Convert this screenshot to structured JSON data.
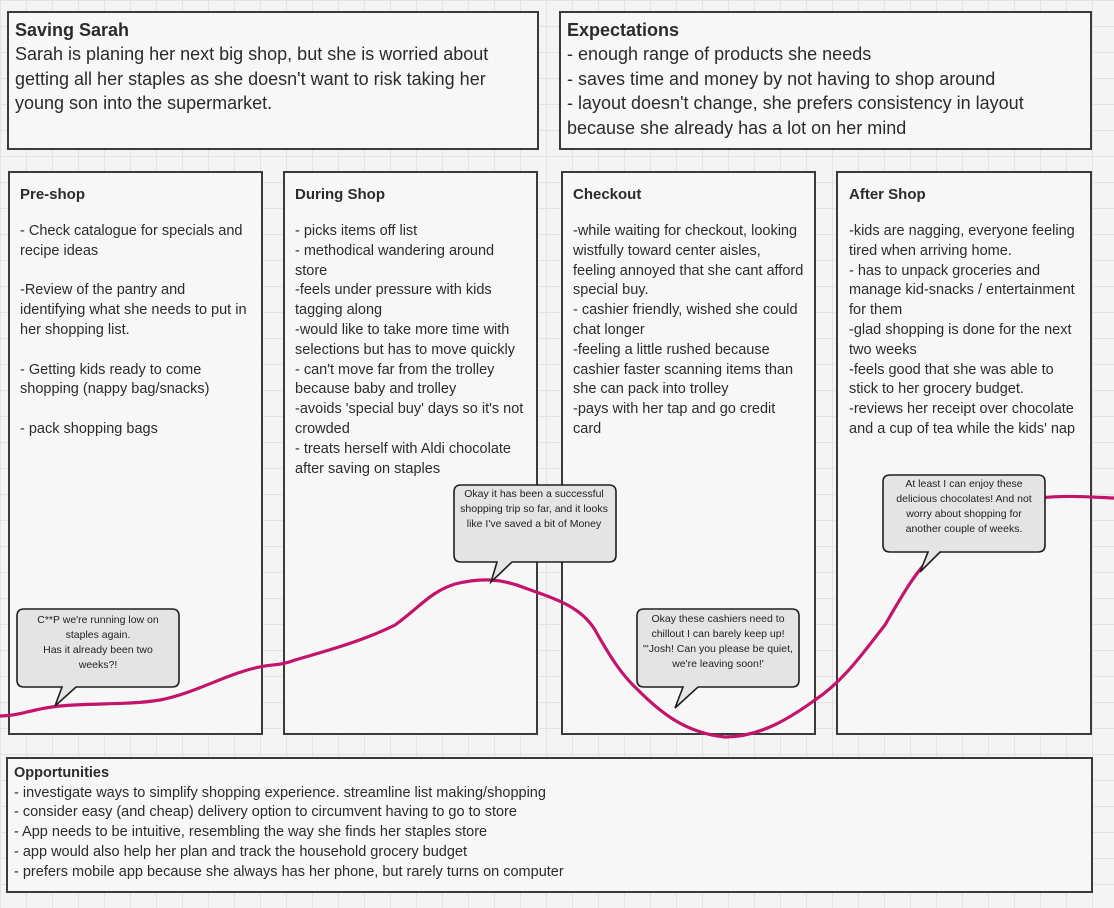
{
  "persona": {
    "title": "Saving Sarah",
    "text": "Sarah is planing her next big shop, but she is worried about getting all her staples as she doesn't want to risk taking her young son into the supermarket."
  },
  "expectations": {
    "title": "Expectations",
    "text": "- enough range of products she needs\n- saves time and money by not having to shop around\n- layout doesn't change, she prefers consistency in layout because she already has a lot on her mind"
  },
  "stages": [
    {
      "title": "Pre-shop",
      "text": "- Check catalogue for specials and recipe ideas\n\n-Review of the pantry and identifying what she needs to put in her shopping list.\n\n- Getting kids ready to come shopping (nappy bag/snacks)\n\n- pack shopping bags"
    },
    {
      "title": "During Shop",
      "text": "- picks items off list\n- methodical wandering around store\n-feels under pressure with kids tagging along\n-would like to take more time with selections but has to move quickly\n- can't move far from the trolley because baby and trolley\n-avoids 'special buy' days so it's not crowded\n- treats herself with Aldi chocolate after saving on staples"
    },
    {
      "title": "Checkout",
      "text": "-while waiting for checkout, looking wistfully toward center aisles, feeling annoyed that she cant afford special buy.\n- cashier friendly, wished she could chat longer\n-feeling a little rushed because cashier faster scanning items than she can pack into trolley\n-pays with her tap and go credit card"
    },
    {
      "title": "After Shop",
      "text": "-kids are nagging, everyone feeling tired when arriving home.\n- has to unpack groceries and manage kid-snacks / entertainment for them\n-glad shopping is done for the next two weeks\n-feels good that she was able to stick to her grocery budget.\n-reviews her receipt over chocolate and a cup of tea while the kids' nap"
    }
  ],
  "thoughts": [
    "C**P we're running low on staples again.\nHas it already been two weeks?!",
    "Okay it has been a successful shopping trip so far, and it looks like I've saved a bit of Money",
    "Okay these cashiers need to chillout I can barely keep up!\n\"'Josh! Can you please be quiet, we're leaving soon!'",
    "At least I can enjoy these delicious chocolates! And not worry about shopping for another couple of weeks."
  ],
  "opportunities": {
    "title": "Opportunities",
    "text": "- investigate ways to simplify shopping experience. streamline list making/shopping\n- consider easy (and cheap) delivery option to circumvent having to go to store\n- App needs to be intuitive, resembling the way she finds her staples store\n- app would also help her plan and track the household grocery budget\n- prefers mobile app because she always has her phone, but rarely turns on computer"
  },
  "colors": {
    "emotion_line": "#c3136a",
    "border": "#3a3a3a",
    "bubble_fill": "#e4e4e4"
  }
}
